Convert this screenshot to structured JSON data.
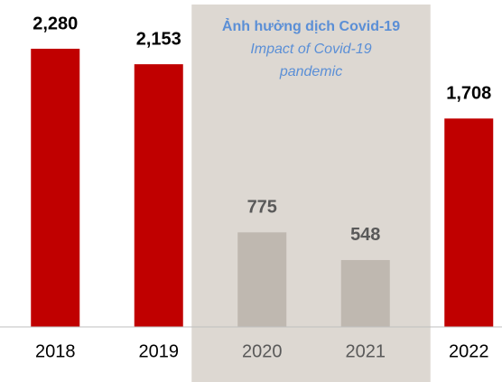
{
  "chart_data": {
    "type": "bar",
    "categories": [
      "2018",
      "2019",
      "2020",
      "2021",
      "2022"
    ],
    "values": [
      2280,
      2153,
      775,
      548,
      1708
    ],
    "value_labels": [
      "2,280",
      "2,153",
      "775",
      "548",
      "1,708"
    ],
    "colors": [
      "#c00000",
      "#c00000",
      "#bfb8b0",
      "#bfb8b0",
      "#c00000"
    ],
    "shaded_categories": [
      2,
      3
    ],
    "annotation": {
      "title": "Ảnh hưởng dịch Covid-19",
      "lines": [
        "Impact of Covid-19",
        "pandemic"
      ]
    }
  }
}
